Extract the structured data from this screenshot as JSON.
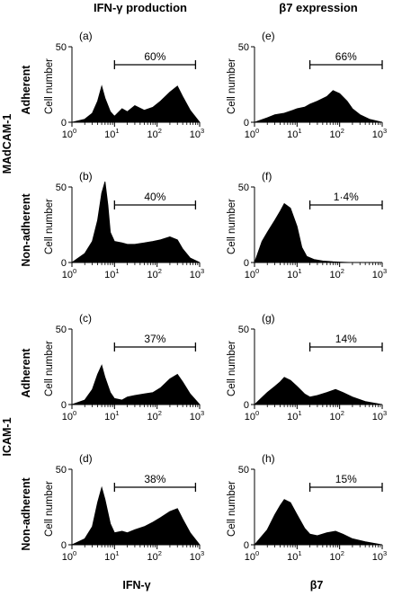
{
  "column_titles": [
    "IFN-γ production",
    "β7 expression"
  ],
  "x_axis_labels": [
    "IFN-γ",
    "β7"
  ],
  "group_labels": [
    "MAdCAM-1",
    "ICAM-1"
  ],
  "row_labels": [
    "Adherent",
    "Non-adherent",
    "Adherent",
    "Non-adherent"
  ],
  "y_axis_label": "Cell number",
  "x_tick_labels": [
    {
      "base": "10",
      "exp": "0"
    },
    {
      "base": "10",
      "exp": "1"
    },
    {
      "base": "10",
      "exp": "2"
    },
    {
      "base": "10",
      "exp": "3"
    }
  ],
  "colors": {
    "fill": "#000000",
    "axis": "#000000",
    "background": "#ffffff"
  },
  "chart_data": [
    {
      "type": "area",
      "panel": "(a)",
      "column": "IFN-γ production",
      "row": "Adherent",
      "group": "MAdCAM-1",
      "x_scale": "log",
      "xlim": [
        1,
        1000
      ],
      "ylim": [
        0,
        50
      ],
      "y_ticks": [
        0,
        50
      ],
      "ylabel": "Cell number",
      "grid": false,
      "histogram_x": [
        1,
        2,
        3,
        4,
        5,
        6,
        8,
        10,
        15,
        20,
        30,
        50,
        80,
        120,
        200,
        300,
        400,
        600,
        1000
      ],
      "histogram_y": [
        0,
        2,
        6,
        14,
        24,
        16,
        7,
        4,
        9,
        7,
        11,
        8,
        10,
        14,
        20,
        24,
        17,
        8,
        0
      ],
      "gate": {
        "label": "60%",
        "x_start": 10,
        "x_end": 800
      }
    },
    {
      "type": "area",
      "panel": "(b)",
      "column": "IFN-γ production",
      "row": "Non-adherent",
      "group": "MAdCAM-1",
      "x_scale": "log",
      "xlim": [
        1,
        1000
      ],
      "ylim": [
        0,
        50
      ],
      "y_ticks": [
        0,
        50
      ],
      "ylabel": "Cell number",
      "grid": false,
      "histogram_x": [
        1,
        2,
        3,
        4,
        5,
        6,
        7,
        8,
        10,
        15,
        20,
        30,
        50,
        80,
        120,
        200,
        300,
        400,
        600,
        1000
      ],
      "histogram_y": [
        0,
        6,
        14,
        28,
        46,
        54,
        38,
        20,
        14,
        13,
        12,
        12,
        13,
        14,
        15,
        17,
        15,
        9,
        3,
        0
      ],
      "gate": {
        "label": "40%",
        "x_start": 10,
        "x_end": 800
      }
    },
    {
      "type": "area",
      "panel": "(c)",
      "column": "IFN-γ production",
      "row": "Adherent",
      "group": "ICAM-1",
      "x_scale": "log",
      "xlim": [
        1,
        1000
      ],
      "ylim": [
        0,
        50
      ],
      "y_ticks": [
        0,
        50
      ],
      "ylabel": "Cell number",
      "grid": false,
      "histogram_x": [
        1,
        2,
        3,
        4,
        5,
        6,
        8,
        10,
        15,
        20,
        30,
        50,
        80,
        120,
        200,
        300,
        400,
        600,
        1000
      ],
      "histogram_y": [
        0,
        3,
        10,
        20,
        26,
        18,
        8,
        4,
        3,
        5,
        6,
        7,
        8,
        11,
        17,
        20,
        15,
        7,
        0
      ],
      "gate": {
        "label": "37%",
        "x_start": 10,
        "x_end": 800
      }
    },
    {
      "type": "area",
      "panel": "(d)",
      "column": "IFN-γ production",
      "row": "Non-adherent",
      "group": "ICAM-1",
      "x_scale": "log",
      "xlim": [
        1,
        1000
      ],
      "ylim": [
        0,
        50
      ],
      "y_ticks": [
        0,
        50
      ],
      "ylabel": "Cell number",
      "grid": false,
      "histogram_x": [
        1,
        2,
        3,
        4,
        5,
        6,
        8,
        10,
        15,
        20,
        30,
        50,
        80,
        120,
        200,
        300,
        400,
        600,
        1000
      ],
      "histogram_y": [
        0,
        4,
        12,
        28,
        38,
        30,
        14,
        8,
        9,
        8,
        10,
        12,
        15,
        18,
        22,
        24,
        17,
        8,
        0
      ],
      "gate": {
        "label": "38%",
        "x_start": 10,
        "x_end": 800
      }
    },
    {
      "type": "area",
      "panel": "(e)",
      "column": "β7 expression",
      "row": "Adherent",
      "group": "MAdCAM-1",
      "x_scale": "log",
      "xlim": [
        1,
        1000
      ],
      "ylim": [
        0,
        50
      ],
      "y_ticks": [
        0,
        50
      ],
      "ylabel": "Cell number",
      "grid": false,
      "histogram_x": [
        1,
        2,
        3,
        5,
        8,
        10,
        15,
        20,
        30,
        50,
        70,
        100,
        150,
        200,
        300,
        500,
        1000
      ],
      "histogram_y": [
        0,
        3,
        5,
        6,
        8,
        9,
        10,
        12,
        14,
        17,
        21,
        19,
        14,
        9,
        5,
        2,
        0
      ],
      "gate": {
        "label": "66%",
        "x_start": 20,
        "x_end": 1000
      }
    },
    {
      "type": "area",
      "panel": "(f)",
      "column": "β7 expression",
      "row": "Non-adherent",
      "group": "MAdCAM-1",
      "x_scale": "log",
      "xlim": [
        1,
        1000
      ],
      "ylim": [
        0,
        50
      ],
      "y_ticks": [
        0,
        50
      ],
      "ylabel": "Cell number",
      "grid": false,
      "histogram_x": [
        1,
        1.5,
        2,
        3,
        4,
        5,
        7,
        10,
        13,
        17,
        25,
        40,
        70,
        100,
        200,
        1000
      ],
      "histogram_y": [
        0,
        14,
        20,
        28,
        34,
        39,
        36,
        24,
        10,
        4,
        2,
        1,
        0.5,
        0.3,
        0,
        0
      ],
      "gate": {
        "label": "1·4%",
        "x_start": 20,
        "x_end": 1000
      }
    },
    {
      "type": "area",
      "panel": "(g)",
      "column": "β7 expression",
      "row": "Adherent",
      "group": "ICAM-1",
      "x_scale": "log",
      "xlim": [
        1,
        1000
      ],
      "ylim": [
        0,
        50
      ],
      "y_ticks": [
        0,
        50
      ],
      "ylabel": "Cell number",
      "grid": false,
      "histogram_x": [
        1,
        2,
        3,
        4,
        5,
        7,
        10,
        15,
        20,
        30,
        50,
        80,
        120,
        200,
        400,
        1000
      ],
      "histogram_y": [
        0,
        8,
        12,
        15,
        18,
        16,
        12,
        7,
        5,
        6,
        8,
        10,
        8,
        5,
        2,
        0
      ],
      "gate": {
        "label": "14%",
        "x_start": 20,
        "x_end": 1000
      }
    },
    {
      "type": "area",
      "panel": "(h)",
      "column": "β7 expression",
      "row": "Non-adherent",
      "group": "ICAM-1",
      "x_scale": "log",
      "xlim": [
        1,
        1000
      ],
      "ylim": [
        0,
        50
      ],
      "y_ticks": [
        0,
        50
      ],
      "ylabel": "Cell number",
      "grid": false,
      "histogram_x": [
        1,
        2,
        3,
        4,
        5,
        7,
        10,
        15,
        20,
        30,
        50,
        80,
        120,
        200,
        400,
        1000
      ],
      "histogram_y": [
        0,
        10,
        20,
        26,
        30,
        28,
        20,
        11,
        7,
        6,
        8,
        9,
        7,
        4,
        2,
        0
      ],
      "gate": {
        "label": "15%",
        "x_start": 20,
        "x_end": 1000
      }
    }
  ]
}
